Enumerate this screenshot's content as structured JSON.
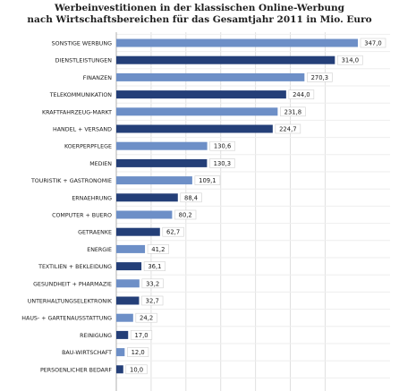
{
  "chart_data": {
    "type": "bar",
    "orientation": "horizontal",
    "title": [
      "Werbeinvestitionen in der klassischen Online-Werbung",
      "nach Wirtschaftsbereichen für das Gesamtjahr 2011 in Mio. Euro"
    ],
    "categories": [
      "SONSTIGE WERBUNG",
      "DIENSTLEISTUNGEN",
      "FINANZEN",
      "TELEKOMMUNIKATION",
      "KRAFTFAHRZEUG-MARKT",
      "HANDEL + VERSAND",
      "KOERPERPFLEGE",
      "MEDIEN",
      "TOURISTIK + GASTRONOMIE",
      "ERNAEHRUNG",
      "COMPUTER + BUERO",
      "GETRAENKE",
      "ENERGIE",
      "TEXTILIEN + BEKLEIDUNG",
      "GESUNDHEIT + PHARMAZIE",
      "UNTERHALTUNGSELEKTRONIK",
      "HAUS- + GARTENAUSSTATTUNG",
      "REINIGUNG",
      "BAU-WIRTSCHAFT",
      "PERSOENLICHER BEDARF"
    ],
    "values": [
      347.0,
      314.0,
      270.3,
      244.0,
      231.8,
      224.7,
      130.6,
      130.3,
      109.1,
      88.4,
      80.2,
      62.7,
      41.2,
      36.1,
      33.2,
      32.7,
      24.2,
      17.0,
      12.0,
      10.0
    ],
    "value_labels": [
      "347,0",
      "314,0",
      "270,3",
      "244,0",
      "231,8",
      "224,7",
      "130,6",
      "130,3",
      "109,1",
      "88,4",
      "80,2",
      "62,7",
      "41,2",
      "36,1",
      "33,2",
      "32,7",
      "24,2",
      "17,0",
      "12,0",
      "10,0"
    ],
    "xlim": [
      0,
      347
    ],
    "grid": true,
    "legend": "none",
    "colors": {
      "light": "#6d8fc7",
      "dark": "#243f78",
      "grid": "#e0e0e0",
      "axis": "#b0b0b0",
      "label_box_border": "#d0d0d0"
    }
  }
}
